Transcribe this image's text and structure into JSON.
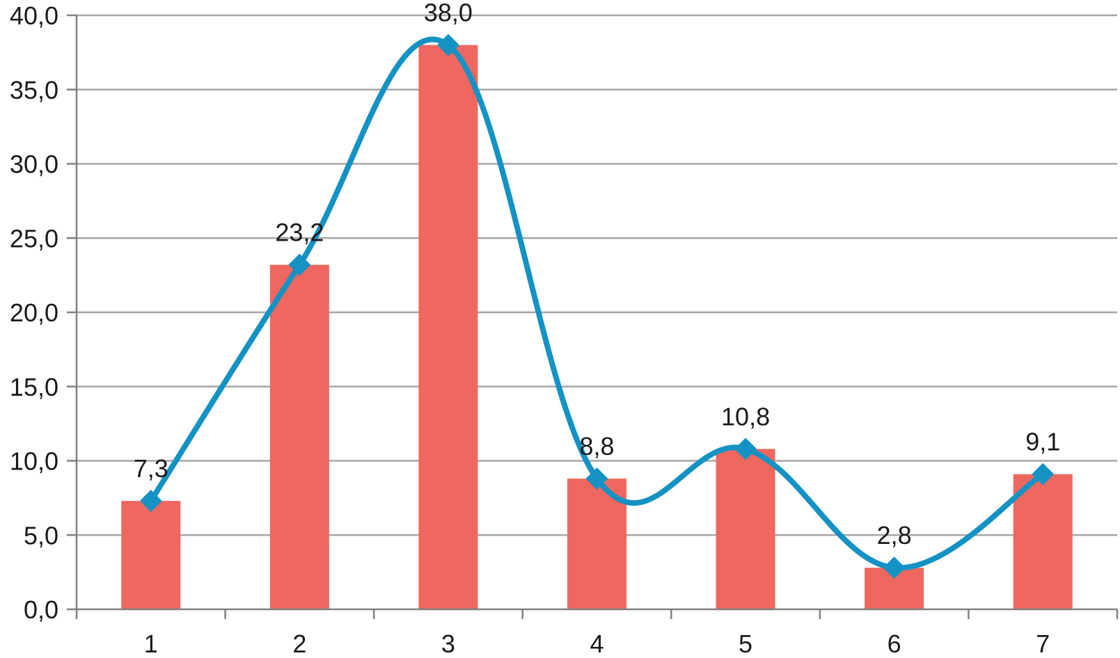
{
  "chart_data": {
    "type": "bar",
    "categories": [
      "1",
      "2",
      "3",
      "4",
      "5",
      "6",
      "7"
    ],
    "series": [
      {
        "type": "bar",
        "color": "#f0675f",
        "values": [
          7.3,
          23.2,
          38.0,
          8.8,
          10.8,
          2.8,
          9.1
        ]
      },
      {
        "type": "line",
        "smooth": true,
        "marker": "diamond",
        "color": "#1592c4",
        "values": [
          7.3,
          23.2,
          38.0,
          8.8,
          10.8,
          2.8,
          9.1
        ]
      }
    ],
    "data_labels": [
      "7,3",
      "23,2",
      "38,0",
      "8,8",
      "10,8",
      "2,8",
      "9,1"
    ],
    "y_tick_labels": [
      "0,0",
      "5,0",
      "10,0",
      "15,0",
      "20,0",
      "25,0",
      "30,0",
      "35,0",
      "40,0"
    ],
    "y_ticks": [
      0,
      5,
      10,
      15,
      20,
      25,
      30,
      35,
      40
    ],
    "ylim": [
      0,
      40
    ],
    "grid": true,
    "legend": "none"
  }
}
